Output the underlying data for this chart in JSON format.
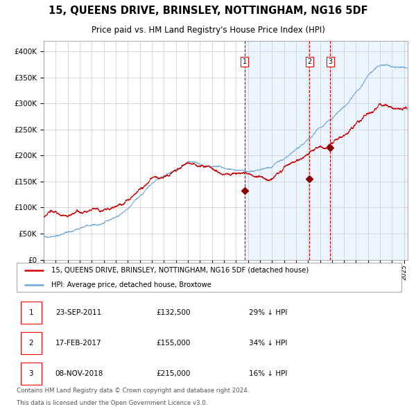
{
  "title": "15, QUEENS DRIVE, BRINSLEY, NOTTINGHAM, NG16 5DF",
  "subtitle": "Price paid vs. HM Land Registry's House Price Index (HPI)",
  "legend_line1": "15, QUEENS DRIVE, BRINSLEY, NOTTINGHAM, NG16 5DF (detached house)",
  "legend_line2": "HPI: Average price, detached house, Broxtowe",
  "footer1": "Contains HM Land Registry data © Crown copyright and database right 2024.",
  "footer2": "This data is licensed under the Open Government Licence v3.0.",
  "hpi_color": "#6fa8dc",
  "price_color": "#cc0000",
  "bg_shaded": "#ddeeff",
  "marker_color": "#880000",
  "dashed_color": "#cc0000",
  "transactions": [
    {
      "num": 1,
      "date": "23-SEP-2011",
      "price": 132500,
      "label": "29% ↓ HPI"
    },
    {
      "num": 2,
      "date": "17-FEB-2017",
      "price": 155000,
      "label": "34% ↓ HPI"
    },
    {
      "num": 3,
      "date": "08-NOV-2018",
      "price": 215000,
      "label": "16% ↓ HPI"
    }
  ],
  "transaction_dates_decimal": [
    2011.73,
    2017.12,
    2018.85
  ],
  "ylim": [
    0,
    420000
  ],
  "xlim_start": 1995.0,
  "xlim_end": 2025.3
}
